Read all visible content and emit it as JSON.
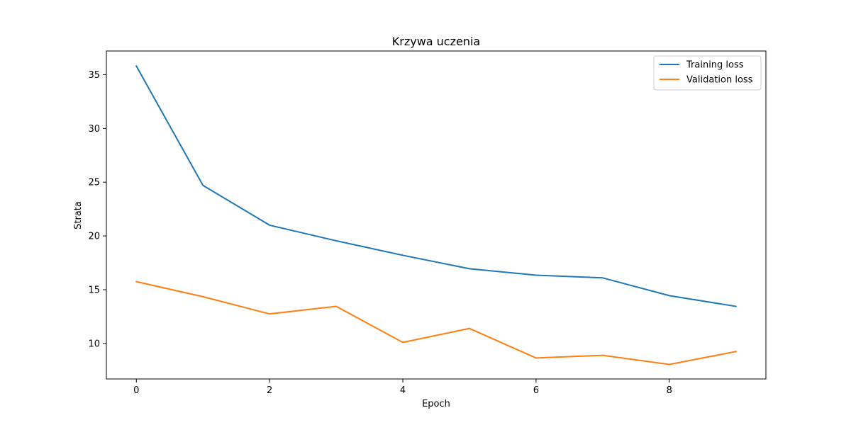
{
  "chart_data": {
    "type": "line",
    "title": "Krzywa uczenia",
    "xlabel": "Epoch",
    "ylabel": "Strata",
    "x": [
      0,
      1,
      2,
      3,
      4,
      5,
      6,
      7,
      8,
      9
    ],
    "xlim": [
      -0.45,
      9.45
    ],
    "ylim": [
      6.7,
      37.2
    ],
    "xticks": [
      0,
      2,
      4,
      6,
      8
    ],
    "yticks": [
      10,
      15,
      20,
      25,
      30,
      35
    ],
    "grid": false,
    "legend_position": "top-right",
    "series": [
      {
        "name": "Training loss",
        "color": "#1f77b4",
        "values": [
          35.8,
          24.7,
          21.0,
          19.55,
          18.2,
          16.95,
          16.35,
          16.1,
          14.45,
          13.45
        ]
      },
      {
        "name": "Validation loss",
        "color": "#ff7f0e",
        "values": [
          15.75,
          14.35,
          12.75,
          13.45,
          10.1,
          11.4,
          8.65,
          8.9,
          8.05,
          9.25
        ]
      }
    ]
  }
}
